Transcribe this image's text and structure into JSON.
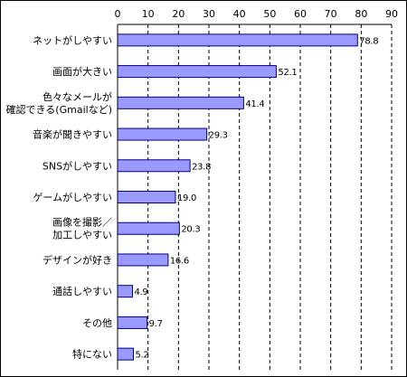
{
  "chart_data": {
    "type": "bar",
    "orientation": "horizontal",
    "title": "",
    "xlabel": "",
    "ylabel": "",
    "xlim": [
      0,
      90
    ],
    "ticks": [
      "0",
      "10",
      "20",
      "30",
      "40",
      "50",
      "60",
      "70",
      "80",
      "90"
    ],
    "grid": true,
    "legend": "none",
    "bar_color": "#9999ff",
    "bar_border": "#000080",
    "categories": [
      [
        "ネットがしやすい"
      ],
      [
        "画面が大きい"
      ],
      [
        "色々なメールが",
        "確認できる(Gmailなど)"
      ],
      [
        "音楽が聞きやすい"
      ],
      [
        "SNSがしやすい"
      ],
      [
        "ゲームがしやすい"
      ],
      [
        "画像を撮影／",
        "加工しやすい"
      ],
      [
        "デザインが好き"
      ],
      [
        "通話しやすい"
      ],
      [
        "その他"
      ],
      [
        "特にない"
      ]
    ],
    "values": [
      78.8,
      52.1,
      41.4,
      29.3,
      23.8,
      19.0,
      20.3,
      16.6,
      4.9,
      9.7,
      5.2
    ],
    "value_labels": [
      "78.8",
      "52.1",
      "41.4",
      "29.3",
      "23.8",
      "19.0",
      "20.3",
      "16.6",
      "4.9",
      "9.7",
      "5.2"
    ]
  }
}
